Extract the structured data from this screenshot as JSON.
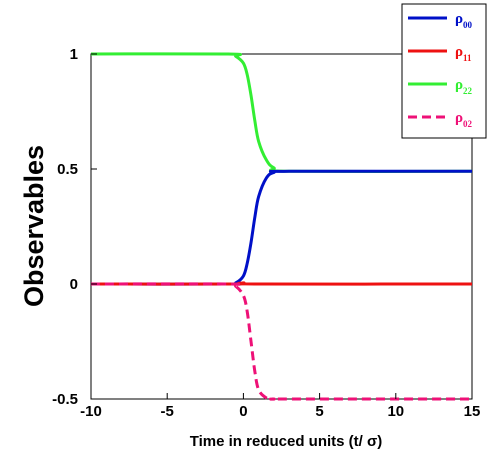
{
  "chart_data": {
    "type": "line",
    "title": "",
    "xlabel": "Time in reduced units (t/ σ)",
    "ylabel": "Observables",
    "xlim": [
      -10,
      15
    ],
    "ylim": [
      -0.5,
      1
    ],
    "xticks": [
      -10,
      -5,
      0,
      5,
      10,
      15
    ],
    "xtick_labels": [
      "-10",
      "-5",
      "0",
      "5",
      "10",
      "15"
    ],
    "yticks": [
      -0.5,
      0,
      0.5,
      1
    ],
    "ytick_labels": [
      "-0.5",
      "0",
      "0.5",
      "1"
    ],
    "grid": false,
    "legend_position": "top-right",
    "series": [
      {
        "name": "ρ",
        "subscript": "00",
        "color": "#0010c8",
        "dash": "solid",
        "x": [
          -10,
          -1,
          -0.5,
          0,
          0.25,
          0.5,
          0.75,
          1,
          1.5,
          2,
          3,
          15
        ],
        "y": [
          0,
          0,
          0.005,
          0.035,
          0.09,
          0.18,
          0.29,
          0.38,
          0.46,
          0.485,
          0.49,
          0.49
        ]
      },
      {
        "name": "ρ",
        "subscript": "11",
        "color": "#ee1111",
        "dash": "solid",
        "x": [
          -10,
          -1,
          0,
          1,
          15
        ],
        "y": [
          0,
          0,
          0.005,
          0,
          0
        ]
      },
      {
        "name": "ρ",
        "subscript": "22",
        "color": "#33ee33",
        "dash": "solid",
        "x": [
          -10,
          -1,
          -0.5,
          0,
          0.25,
          0.5,
          0.75,
          1,
          1.5,
          2,
          3,
          15
        ],
        "y": [
          1,
          1,
          0.99,
          0.96,
          0.91,
          0.82,
          0.71,
          0.62,
          0.54,
          0.505,
          0.49,
          0.49
        ]
      },
      {
        "name": "ρ",
        "subscript": "02",
        "color": "#ee1177",
        "dash": "dashed",
        "x": [
          -10,
          -1,
          -0.5,
          0,
          0.25,
          0.5,
          0.75,
          1,
          1.5,
          2,
          3,
          15
        ],
        "y": [
          0,
          0,
          -0.01,
          -0.05,
          -0.12,
          -0.25,
          -0.38,
          -0.46,
          -0.495,
          -0.5,
          -0.5,
          -0.5
        ]
      }
    ]
  }
}
